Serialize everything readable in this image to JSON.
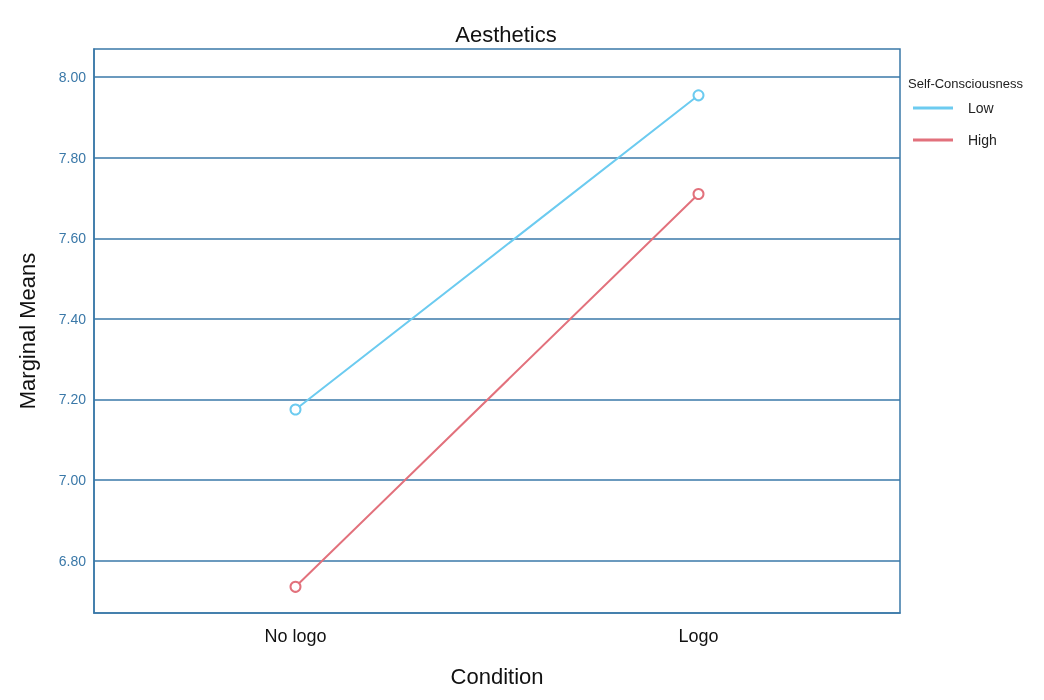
{
  "chart_data": {
    "type": "line",
    "title": "Aesthetics",
    "xlabel": "Condition",
    "ylabel": "Marginal Means",
    "legend_title": "Self-Consciousness",
    "categories": [
      "No logo",
      "Logo"
    ],
    "series": [
      {
        "name": "Low",
        "color": "#6ccbf0",
        "values": [
          7.175,
          7.955
        ]
      },
      {
        "name": "High",
        "color": "#e2717c",
        "values": [
          6.735,
          7.71
        ]
      }
    ],
    "ylim": [
      6.67,
      8.07
    ],
    "yticks": [
      {
        "value": 6.8,
        "label": "6.80"
      },
      {
        "value": 7.0,
        "label": "7.00"
      },
      {
        "value": 7.2,
        "label": "7.20"
      },
      {
        "value": 7.4,
        "label": "7.40"
      },
      {
        "value": 7.6,
        "label": "7.60"
      },
      {
        "value": 7.8,
        "label": "7.80"
      },
      {
        "value": 8.0,
        "label": "8.00"
      }
    ],
    "grid": "y",
    "legend": "top right",
    "marker": "circle",
    "line_style": "solid"
  }
}
